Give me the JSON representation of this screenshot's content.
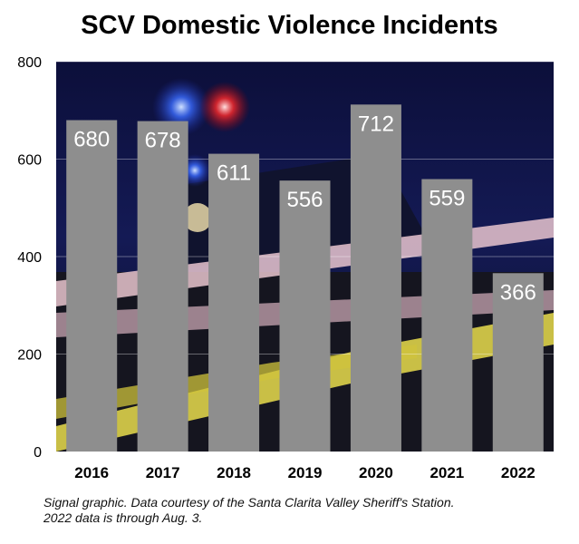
{
  "chart_data": {
    "type": "bar",
    "title": "SCV Domestic Violence Incidents",
    "categories": [
      "2016",
      "2017",
      "2018",
      "2019",
      "2020",
      "2021",
      "2022"
    ],
    "values": [
      680,
      678,
      611,
      556,
      712,
      559,
      366
    ],
    "data_labels": [
      "680",
      "678",
      "611",
      "556",
      "712",
      "559",
      "366"
    ],
    "xlabel": "",
    "ylabel": "",
    "ylim": [
      0,
      800
    ],
    "yticks": [
      "0",
      "200",
      "400",
      "600",
      "800"
    ],
    "grid": true,
    "bar_color": "#8e8e8e",
    "background": "photo of police car lights and crime-scene tape at night"
  },
  "footnote": {
    "line1": "Signal graphic. Data courtesy of the Santa Clarita Valley Sheriff's Station.",
    "line2": "2022 data is through Aug. 3."
  },
  "colors": {
    "bar": "#8e8e8e",
    "label": "#ffffff",
    "title": "#000000"
  }
}
